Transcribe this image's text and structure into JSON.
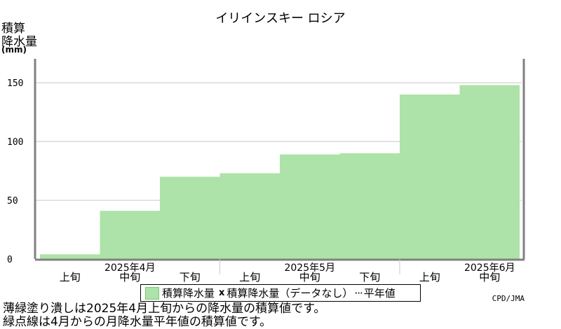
{
  "chart_data": {
    "type": "bar",
    "title": "イリインスキー ロシア",
    "ylabel_lines": [
      "積算",
      "降水量"
    ],
    "yunit": "(mm)",
    "categories": [
      "2025年4月上旬",
      "2025年4月中旬",
      "2025年4月下旬",
      "2025年5月上旬",
      "2025年5月中旬",
      "2025年5月下旬",
      "2025年6月上旬",
      "2025年6月中旬"
    ],
    "values": [
      4,
      41,
      70,
      73,
      89,
      90,
      140,
      148
    ],
    "ylim": [
      0,
      168
    ],
    "yticks": [
      0,
      50,
      100,
      150
    ],
    "dekad_labels": [
      "上旬",
      "中旬",
      "下旬"
    ],
    "month_labels": [
      "2025年4月",
      "2025年5月",
      "2025年6月"
    ],
    "grid": true,
    "colors": {
      "bar": "#ade3a8",
      "grid": "#c8c8c8",
      "axis": "#808080"
    }
  },
  "legend": {
    "series1": "積算降水量",
    "mark": "x",
    "series2": "積算降水量（データなし）",
    "dots": "···",
    "series3": "平年値"
  },
  "credit": "CPD/JMA",
  "notes": {
    "line1": "薄緑塗り潰しは2025年4月上旬からの降水量の積算値です。",
    "line2": "緑点線は4月からの月降水量平年値の積算値です。"
  }
}
